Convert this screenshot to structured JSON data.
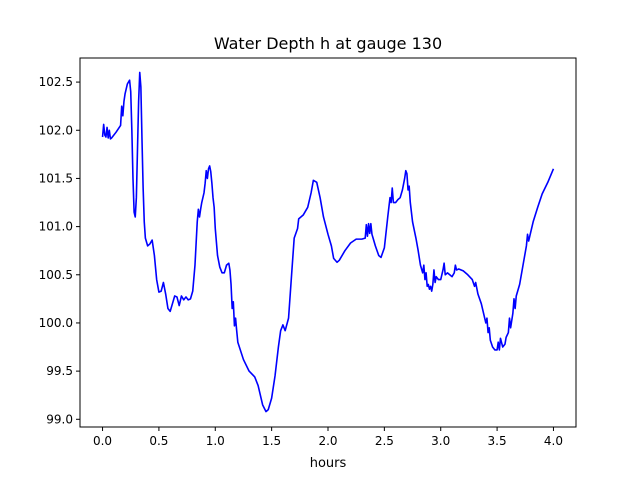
{
  "chart_data": {
    "type": "line",
    "title": "Water Depth h at gauge 130",
    "xlabel": "hours",
    "ylabel": "",
    "xlim": [
      -0.2,
      4.2
    ],
    "ylim": [
      98.92,
      102.75
    ],
    "xticks": [
      0.0,
      0.5,
      1.0,
      1.5,
      2.0,
      2.5,
      3.0,
      3.5,
      4.0
    ],
    "xtick_labels": [
      "0.0",
      "0.5",
      "1.0",
      "1.5",
      "2.0",
      "2.5",
      "3.0",
      "3.5",
      "4.0"
    ],
    "yticks": [
      99.0,
      99.5,
      100.0,
      100.5,
      101.0,
      101.5,
      102.0,
      102.5
    ],
    "ytick_labels": [
      "99.0",
      "99.5",
      "100.0",
      "100.5",
      "101.0",
      "101.5",
      "102.0",
      "102.5"
    ],
    "grid": false,
    "series": [
      {
        "name": "",
        "color": "#0000ff",
        "points": [
          [
            0.0,
            101.93
          ],
          [
            0.01,
            102.06
          ],
          [
            0.02,
            101.95
          ],
          [
            0.03,
            101.93
          ],
          [
            0.04,
            102.03
          ],
          [
            0.05,
            101.92
          ],
          [
            0.06,
            102.0
          ],
          [
            0.07,
            101.91
          ],
          [
            0.08,
            101.92
          ],
          [
            0.12,
            101.98
          ],
          [
            0.16,
            102.05
          ],
          [
            0.17,
            102.25
          ],
          [
            0.18,
            102.15
          ],
          [
            0.19,
            102.3
          ],
          [
            0.2,
            102.38
          ],
          [
            0.22,
            102.48
          ],
          [
            0.24,
            102.52
          ],
          [
            0.25,
            102.4
          ],
          [
            0.26,
            102.0
          ],
          [
            0.27,
            101.5
          ],
          [
            0.28,
            101.15
          ],
          [
            0.29,
            101.1
          ],
          [
            0.3,
            101.3
          ],
          [
            0.31,
            101.8
          ],
          [
            0.32,
            102.3
          ],
          [
            0.33,
            102.6
          ],
          [
            0.34,
            102.45
          ],
          [
            0.35,
            101.9
          ],
          [
            0.36,
            101.4
          ],
          [
            0.37,
            101.05
          ],
          [
            0.38,
            100.88
          ],
          [
            0.4,
            100.8
          ],
          [
            0.42,
            100.82
          ],
          [
            0.44,
            100.86
          ],
          [
            0.46,
            100.7
          ],
          [
            0.48,
            100.45
          ],
          [
            0.5,
            100.32
          ],
          [
            0.52,
            100.33
          ],
          [
            0.54,
            100.42
          ],
          [
            0.56,
            100.3
          ],
          [
            0.58,
            100.15
          ],
          [
            0.6,
            100.12
          ],
          [
            0.62,
            100.2
          ],
          [
            0.64,
            100.28
          ],
          [
            0.66,
            100.27
          ],
          [
            0.68,
            100.18
          ],
          [
            0.7,
            100.28
          ],
          [
            0.72,
            100.24
          ],
          [
            0.74,
            100.27
          ],
          [
            0.76,
            100.24
          ],
          [
            0.78,
            100.25
          ],
          [
            0.8,
            100.33
          ],
          [
            0.82,
            100.6
          ],
          [
            0.84,
            101.05
          ],
          [
            0.85,
            101.18
          ],
          [
            0.86,
            101.1
          ],
          [
            0.87,
            101.18
          ],
          [
            0.88,
            101.25
          ],
          [
            0.9,
            101.35
          ],
          [
            0.91,
            101.45
          ],
          [
            0.92,
            101.58
          ],
          [
            0.93,
            101.5
          ],
          [
            0.94,
            101.6
          ],
          [
            0.95,
            101.63
          ],
          [
            0.96,
            101.57
          ],
          [
            0.97,
            101.45
          ],
          [
            0.98,
            101.3
          ],
          [
            0.99,
            101.2
          ],
          [
            1.0,
            100.98
          ],
          [
            1.02,
            100.7
          ],
          [
            1.04,
            100.58
          ],
          [
            1.06,
            100.52
          ],
          [
            1.08,
            100.52
          ],
          [
            1.1,
            100.6
          ],
          [
            1.12,
            100.62
          ],
          [
            1.13,
            100.55
          ],
          [
            1.14,
            100.4
          ],
          [
            1.15,
            100.15
          ],
          [
            1.16,
            100.22
          ],
          [
            1.17,
            99.97
          ],
          [
            1.18,
            100.05
          ],
          [
            1.19,
            99.92
          ],
          [
            1.2,
            99.8
          ],
          [
            1.25,
            99.62
          ],
          [
            1.3,
            99.5
          ],
          [
            1.35,
            99.44
          ],
          [
            1.38,
            99.35
          ],
          [
            1.42,
            99.15
          ],
          [
            1.45,
            99.08
          ],
          [
            1.47,
            99.1
          ],
          [
            1.5,
            99.22
          ],
          [
            1.53,
            99.45
          ],
          [
            1.56,
            99.75
          ],
          [
            1.58,
            99.92
          ],
          [
            1.6,
            99.98
          ],
          [
            1.62,
            99.92
          ],
          [
            1.65,
            100.05
          ],
          [
            1.68,
            100.55
          ],
          [
            1.7,
            100.88
          ],
          [
            1.73,
            100.98
          ],
          [
            1.74,
            101.08
          ],
          [
            1.78,
            101.12
          ],
          [
            1.82,
            101.2
          ],
          [
            1.85,
            101.35
          ],
          [
            1.87,
            101.48
          ],
          [
            1.9,
            101.46
          ],
          [
            1.93,
            101.3
          ],
          [
            1.96,
            101.1
          ],
          [
            2.0,
            100.92
          ],
          [
            2.03,
            100.8
          ],
          [
            2.05,
            100.67
          ],
          [
            2.08,
            100.63
          ],
          [
            2.1,
            100.65
          ],
          [
            2.15,
            100.75
          ],
          [
            2.2,
            100.83
          ],
          [
            2.25,
            100.87
          ],
          [
            2.3,
            100.87
          ],
          [
            2.33,
            100.88
          ],
          [
            2.34,
            101.02
          ],
          [
            2.35,
            100.9
          ],
          [
            2.36,
            101.03
          ],
          [
            2.37,
            100.93
          ],
          [
            2.38,
            101.03
          ],
          [
            2.39,
            100.92
          ],
          [
            2.4,
            100.88
          ],
          [
            2.42,
            100.8
          ],
          [
            2.45,
            100.7
          ],
          [
            2.47,
            100.68
          ],
          [
            2.5,
            100.78
          ],
          [
            2.53,
            101.1
          ],
          [
            2.55,
            101.3
          ],
          [
            2.56,
            101.25
          ],
          [
            2.57,
            101.4
          ],
          [
            2.58,
            101.25
          ],
          [
            2.6,
            101.25
          ],
          [
            2.62,
            101.28
          ],
          [
            2.64,
            101.3
          ],
          [
            2.66,
            101.38
          ],
          [
            2.68,
            101.5
          ],
          [
            2.69,
            101.58
          ],
          [
            2.7,
            101.55
          ],
          [
            2.71,
            101.38
          ],
          [
            2.72,
            101.42
          ],
          [
            2.73,
            101.25
          ],
          [
            2.75,
            101.05
          ],
          [
            2.78,
            100.88
          ],
          [
            2.8,
            100.75
          ],
          [
            2.82,
            100.6
          ],
          [
            2.84,
            100.52
          ],
          [
            2.85,
            100.6
          ],
          [
            2.86,
            100.45
          ],
          [
            2.87,
            100.52
          ],
          [
            2.88,
            100.38
          ],
          [
            2.89,
            100.4
          ],
          [
            2.9,
            100.35
          ],
          [
            2.91,
            100.38
          ],
          [
            2.92,
            100.33
          ],
          [
            2.93,
            100.4
          ],
          [
            2.94,
            100.55
          ],
          [
            2.95,
            100.42
          ],
          [
            2.96,
            100.48
          ],
          [
            2.98,
            100.45
          ],
          [
            3.0,
            100.45
          ],
          [
            3.02,
            100.55
          ],
          [
            3.03,
            100.62
          ],
          [
            3.04,
            100.5
          ],
          [
            3.06,
            100.52
          ],
          [
            3.08,
            100.5
          ],
          [
            3.1,
            100.48
          ],
          [
            3.12,
            100.52
          ],
          [
            3.13,
            100.6
          ],
          [
            3.14,
            100.55
          ],
          [
            3.16,
            100.56
          ],
          [
            3.2,
            100.54
          ],
          [
            3.24,
            100.5
          ],
          [
            3.28,
            100.45
          ],
          [
            3.3,
            100.38
          ],
          [
            3.31,
            100.42
          ],
          [
            3.33,
            100.3
          ],
          [
            3.36,
            100.2
          ],
          [
            3.38,
            100.1
          ],
          [
            3.4,
            100.0
          ],
          [
            3.41,
            100.05
          ],
          [
            3.42,
            99.9
          ],
          [
            3.43,
            99.95
          ],
          [
            3.44,
            99.82
          ],
          [
            3.46,
            99.75
          ],
          [
            3.48,
            99.72
          ],
          [
            3.5,
            99.72
          ],
          [
            3.51,
            99.8
          ],
          [
            3.52,
            99.72
          ],
          [
            3.53,
            99.84
          ],
          [
            3.55,
            99.75
          ],
          [
            3.57,
            99.78
          ],
          [
            3.58,
            99.85
          ],
          [
            3.6,
            99.9
          ],
          [
            3.61,
            100.05
          ],
          [
            3.62,
            99.95
          ],
          [
            3.64,
            100.1
          ],
          [
            3.65,
            100.25
          ],
          [
            3.66,
            100.15
          ],
          [
            3.67,
            100.28
          ],
          [
            3.7,
            100.4
          ],
          [
            3.73,
            100.6
          ],
          [
            3.76,
            100.8
          ],
          [
            3.77,
            100.92
          ],
          [
            3.78,
            100.85
          ],
          [
            3.79,
            100.9
          ],
          [
            3.82,
            101.05
          ],
          [
            3.86,
            101.2
          ],
          [
            3.9,
            101.34
          ],
          [
            3.95,
            101.46
          ],
          [
            4.0,
            101.6
          ]
        ]
      }
    ]
  }
}
